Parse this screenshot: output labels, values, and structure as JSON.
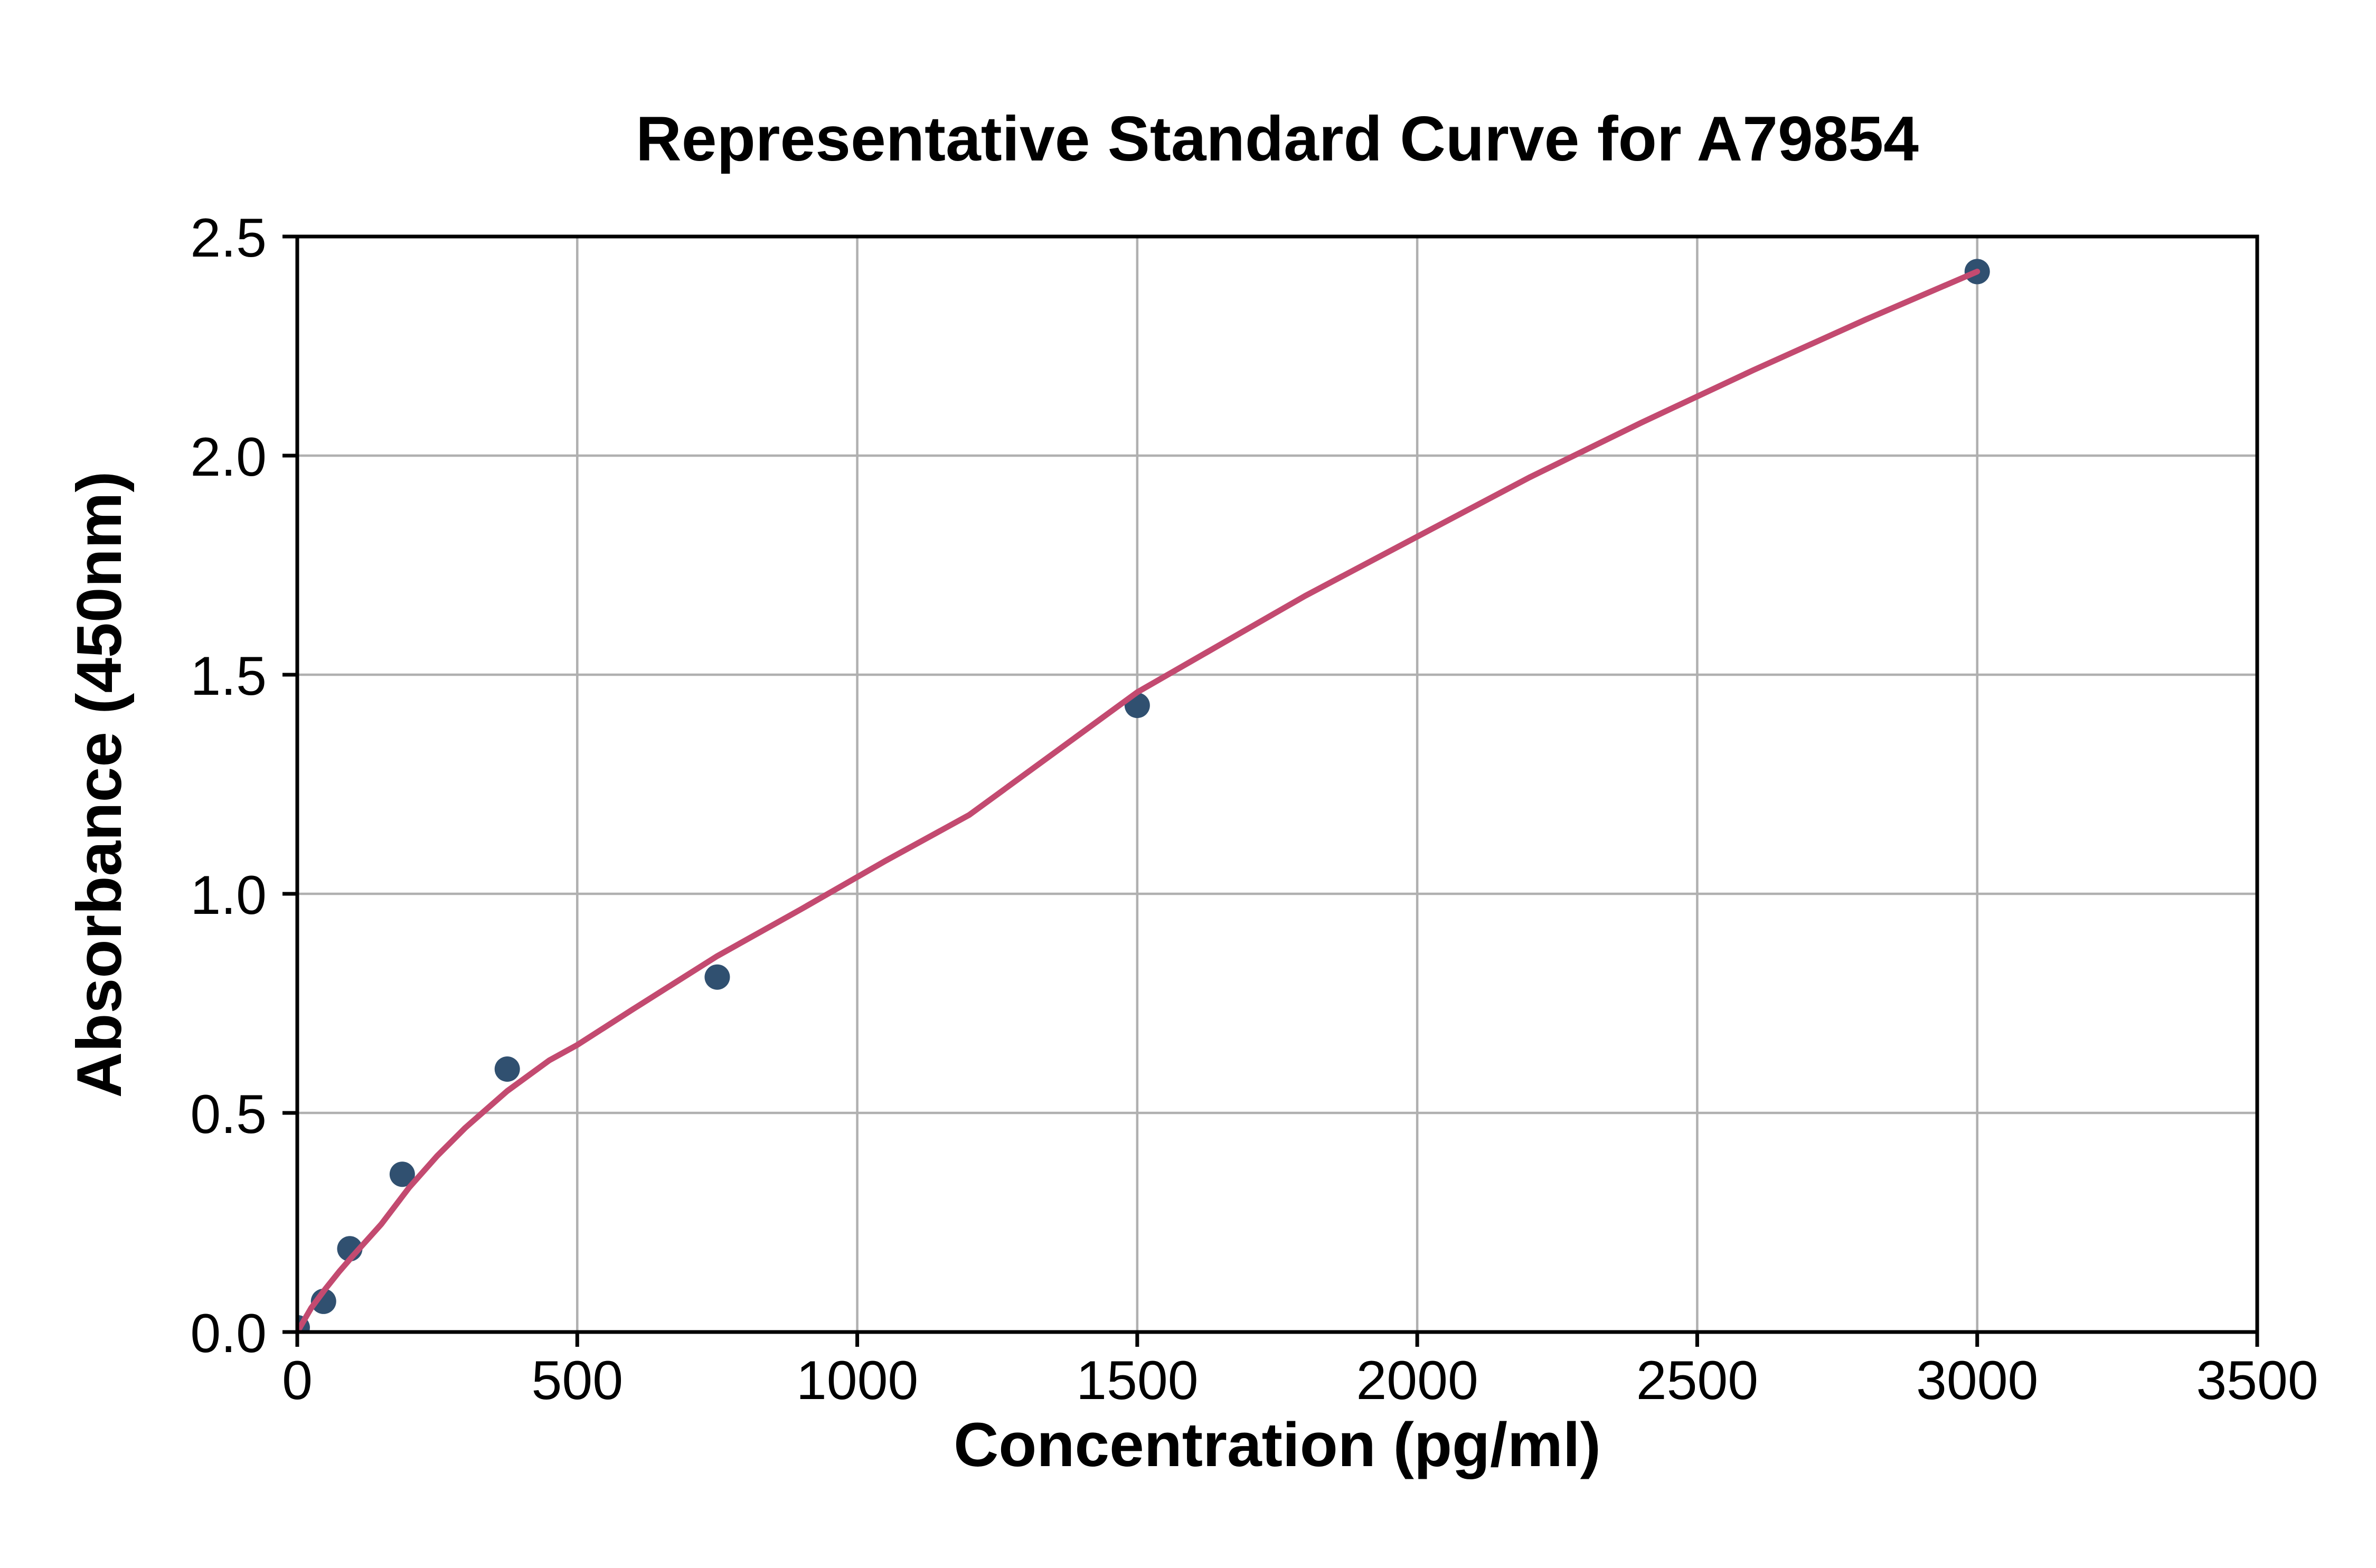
{
  "chart_data": {
    "type": "scatter",
    "title": "Representative Standard Curve for A79854",
    "xlabel": "Concentration (pg/ml)",
    "ylabel": "Absorbance (450nm)",
    "xlim": [
      0,
      3500
    ],
    "ylim": [
      0,
      2.5
    ],
    "x_ticks": [
      0,
      500,
      1000,
      1500,
      2000,
      2500,
      3000,
      3500
    ],
    "x_tick_labels": [
      "0",
      "500",
      "1000",
      "1500",
      "2000",
      "2500",
      "3000",
      "3500"
    ],
    "y_ticks": [
      0,
      0.5,
      1.0,
      1.5,
      2.0,
      2.5
    ],
    "y_tick_labels": [
      "0.0",
      "0.5",
      "1.0",
      "1.5",
      "2.0",
      "2.5"
    ],
    "grid": true,
    "legend": null,
    "style": {
      "background": "#ffffff",
      "grid_color": "#b0b0b0",
      "axis_color": "#000000",
      "point_color": "#305070",
      "curve_color": "#c34a70"
    },
    "series": [
      {
        "name": "standard-points",
        "type": "scatter",
        "color": "#305070",
        "points": [
          [
            0,
            0.01
          ],
          [
            46.9,
            0.07
          ],
          [
            93.8,
            0.19
          ],
          [
            187.5,
            0.36
          ],
          [
            375,
            0.6
          ],
          [
            750,
            0.81
          ],
          [
            1500,
            1.43
          ],
          [
            3000,
            2.42
          ]
        ]
      },
      {
        "name": "fitted-curve",
        "type": "line",
        "color": "#c34a70",
        "points": [
          [
            0,
            0.0
          ],
          [
            25,
            0.055
          ],
          [
            50,
            0.098
          ],
          [
            75,
            0.138
          ],
          [
            100,
            0.175
          ],
          [
            150,
            0.246
          ],
          [
            200,
            0.33
          ],
          [
            250,
            0.402
          ],
          [
            300,
            0.466
          ],
          [
            375,
            0.55
          ],
          [
            450,
            0.62
          ],
          [
            500,
            0.655
          ],
          [
            600,
            0.737
          ],
          [
            750,
            0.858
          ],
          [
            900,
            0.965
          ],
          [
            1050,
            1.075
          ],
          [
            1200,
            1.18
          ],
          [
            1350,
            1.32
          ],
          [
            1500,
            1.46
          ],
          [
            1650,
            1.57
          ],
          [
            1800,
            1.68
          ],
          [
            2000,
            1.815
          ],
          [
            2200,
            1.95
          ],
          [
            2400,
            2.075
          ],
          [
            2600,
            2.195
          ],
          [
            2800,
            2.31
          ],
          [
            3000,
            2.42
          ]
        ]
      }
    ]
  }
}
